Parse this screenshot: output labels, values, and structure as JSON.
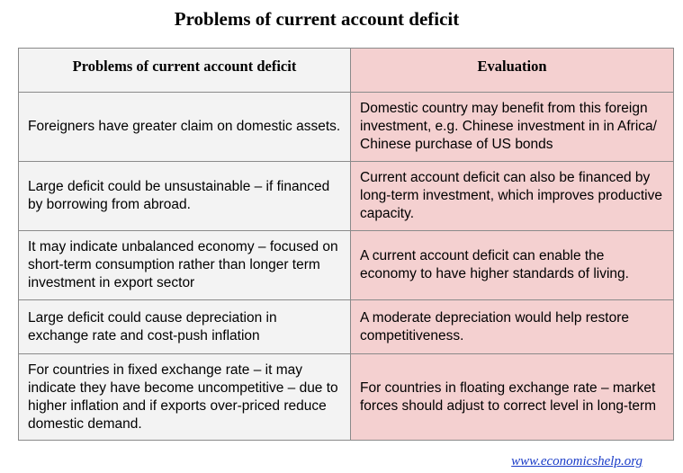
{
  "title": "Problems of current account deficit",
  "table": {
    "headers": [
      "Problems of current account deficit",
      "Evaluation"
    ],
    "rows": [
      {
        "problem": "Foreigners have greater claim on domestic assets.",
        "evaluation": "Domestic country may benefit from this foreign investment, e.g. Chinese investment in in Africa/ Chinese purchase of US bonds"
      },
      {
        "problem": "Large deficit could be unsustainable – if financed by borrowing from abroad.",
        "evaluation": "Current account deficit can also be financed by long-term investment, which improves productive capacity."
      },
      {
        "problem": "It may indicate unbalanced economy – focused on short-term consumption rather than longer term investment in export sector",
        "evaluation": "A current account deficit can enable the economy to have higher standards of living."
      },
      {
        "problem": "Large deficit could cause depreciation in exchange rate and cost-push inflation",
        "evaluation": "A moderate depreciation would help restore competitiveness."
      },
      {
        "problem": "For countries in fixed exchange rate – it may indicate they have become uncompetitive – due to higher inflation and if exports over-priced reduce domestic demand.",
        "evaluation": "For countries in floating exchange rate – market forces should adjust to correct level in long-term"
      }
    ]
  },
  "footer": {
    "link": "www.economicshelp.org"
  },
  "colors": {
    "left_column_bg": "#f3f3f3",
    "right_column_bg": "#f4d0d0",
    "link": "#1a3cc8",
    "border": "#8a8a8a"
  }
}
